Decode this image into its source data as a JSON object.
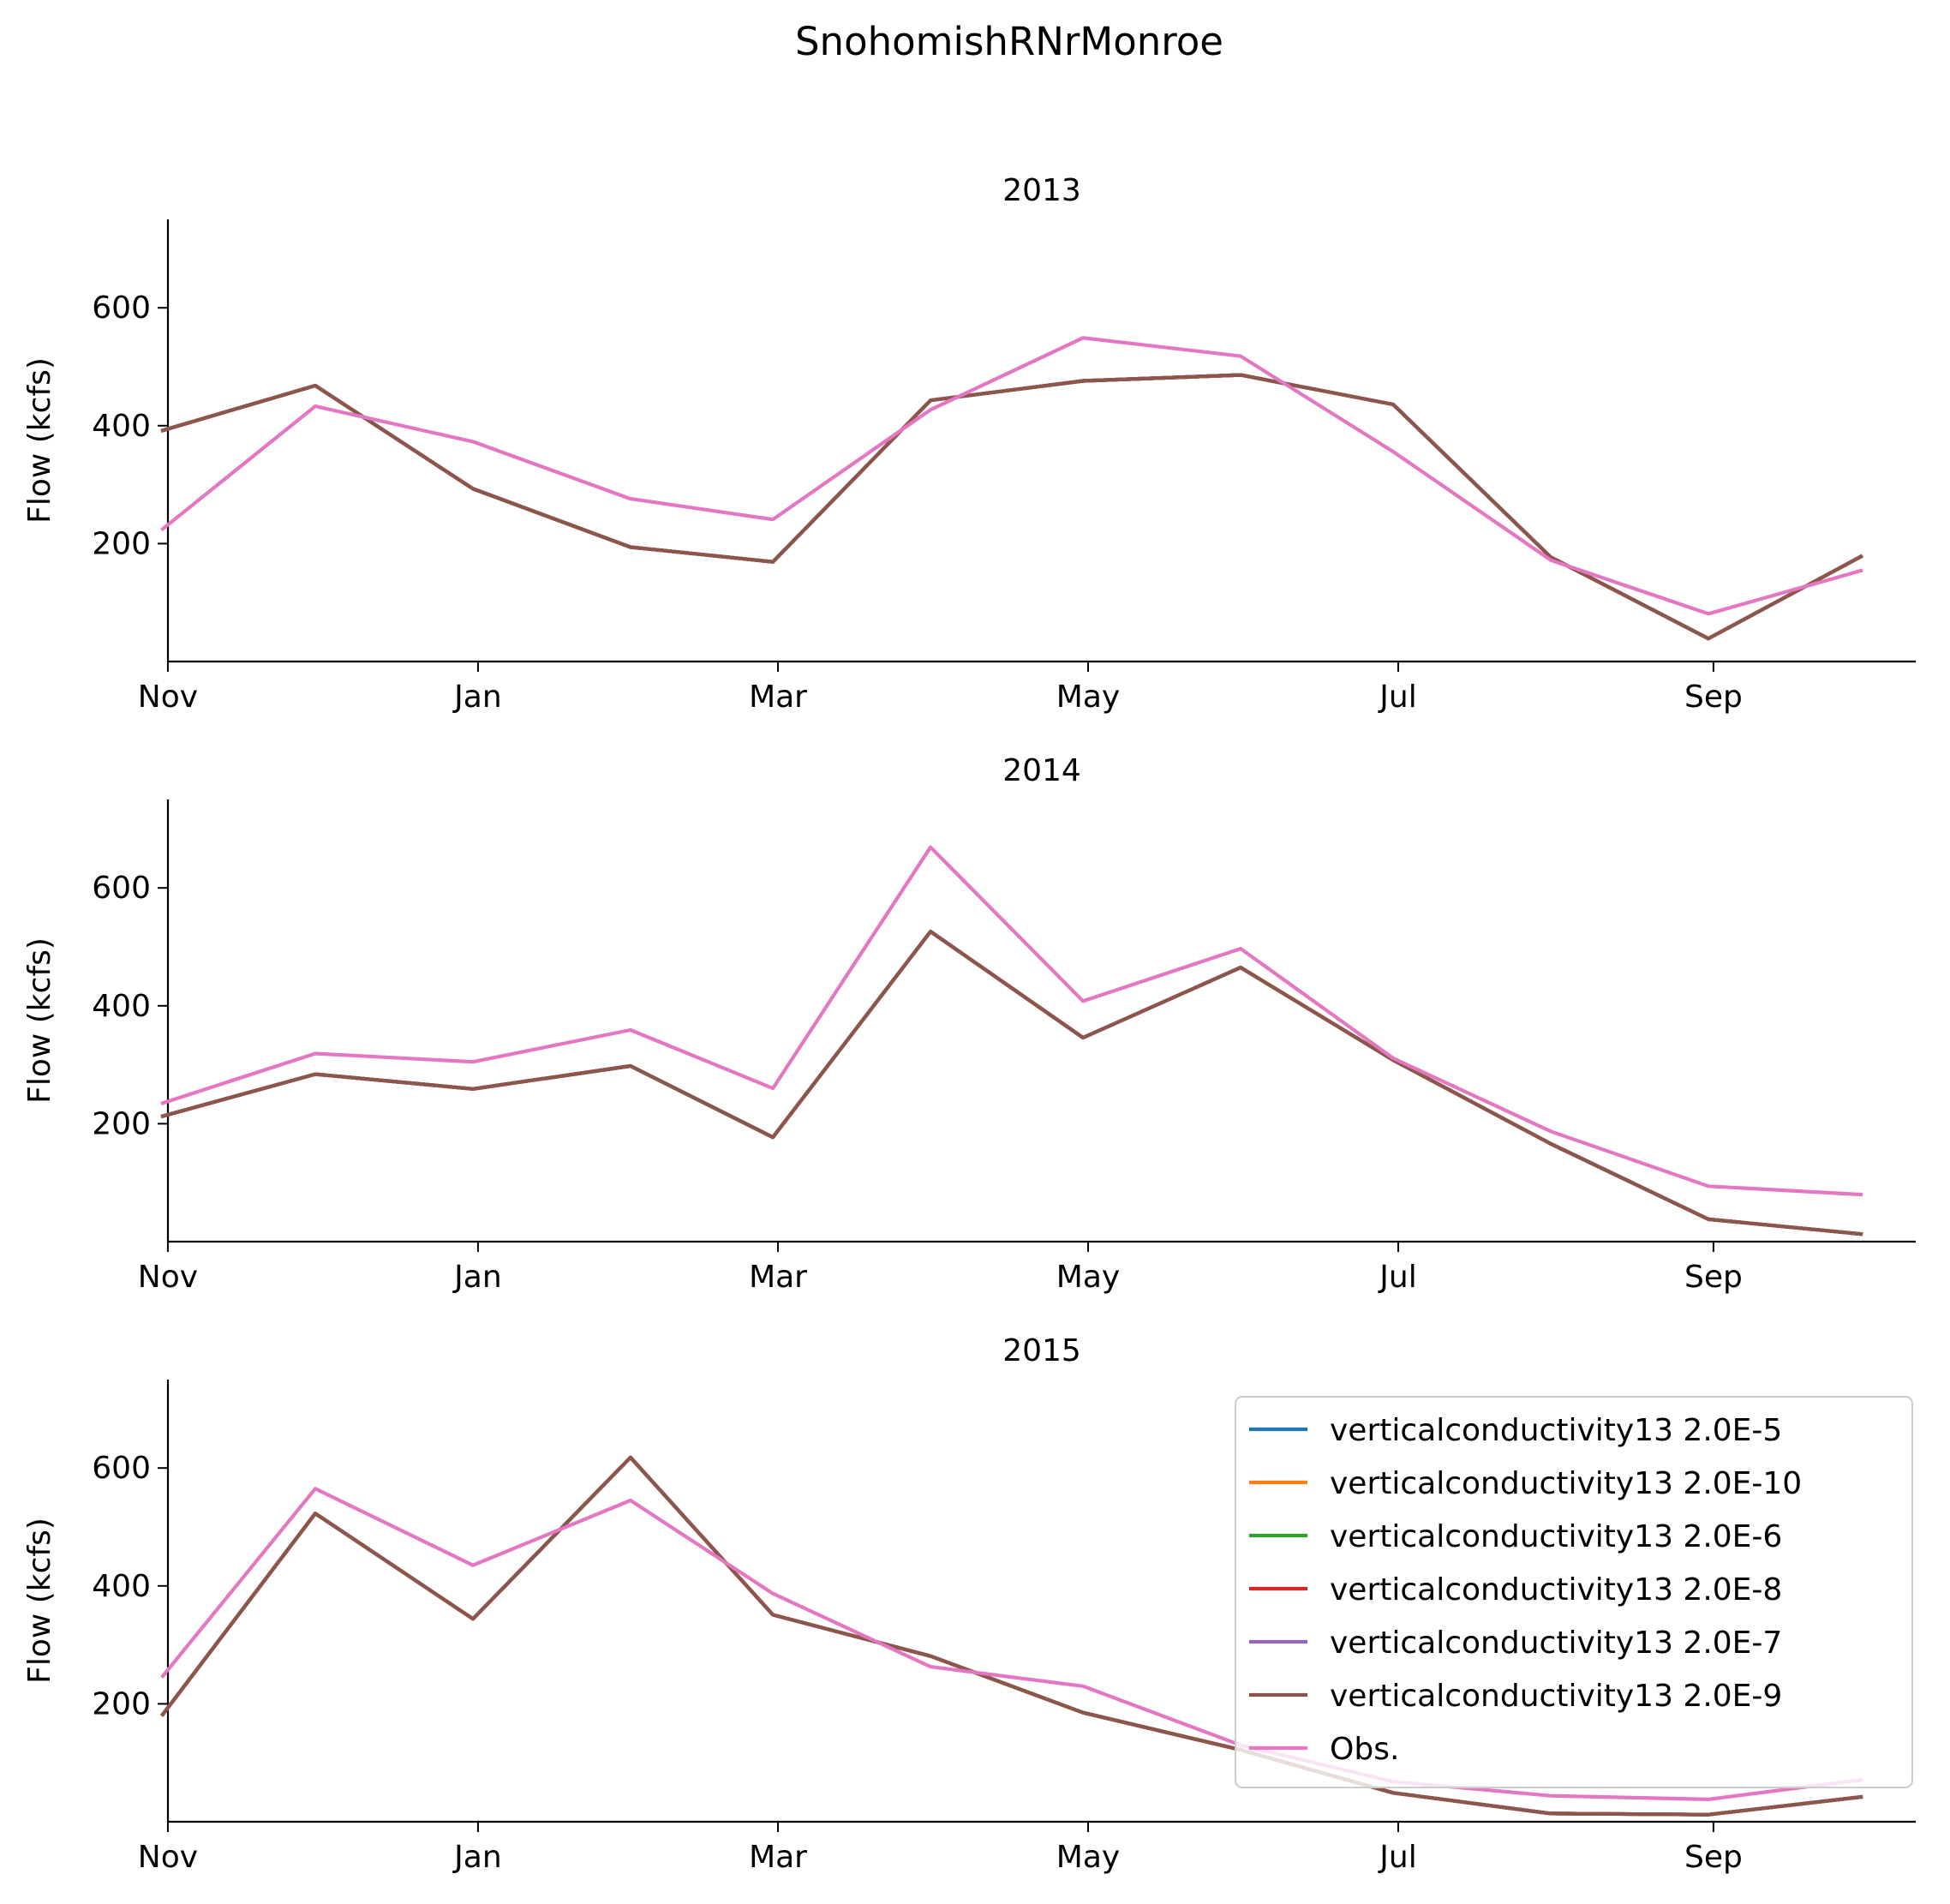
{
  "figure_title": "SnohomishRNrMonroe",
  "colors": {
    "verticalconductivity13 2.0E-5": "#1f77b4",
    "verticalconductivity13 2.0E-10": "#ff7f0e",
    "verticalconductivity13 2.0E-6": "#2ca02c",
    "verticalconductivity13 2.0E-8": "#d62728",
    "verticalconductivity13 2.0E-7": "#9467bd",
    "verticalconductivity13 2.0E-9": "#8c564b",
    "Obs.": "#e377c2"
  },
  "legend": {
    "entries": [
      "verticalconductivity13 2.0E-5",
      "verticalconductivity13 2.0E-10",
      "verticalconductivity13 2.0E-6",
      "verticalconductivity13 2.0E-8",
      "verticalconductivity13 2.0E-7",
      "verticalconductivity13 2.0E-9",
      "Obs."
    ],
    "placement": "upper-right of bottom panel"
  },
  "chart_data": [
    {
      "type": "line",
      "title": "2013",
      "ylabel": "Flow (kcfs)",
      "xlabel": "",
      "ylim": [
        0,
        750
      ],
      "yticks": [
        200,
        400,
        600
      ],
      "xtick_labels": [
        "Nov",
        "Jan",
        "Mar",
        "May",
        "Jul",
        "Sep"
      ],
      "x": [
        "2012-10-31",
        "2012-11-30",
        "2012-12-31",
        "2013-01-31",
        "2013-02-28",
        "2013-03-31",
        "2013-04-30",
        "2013-05-31",
        "2013-06-30",
        "2013-07-31",
        "2013-08-31",
        "2013-09-30"
      ],
      "series": [
        {
          "name": "verticalconductivity13 2.0E-5",
          "values": [
            392,
            468,
            293,
            194,
            169,
            443,
            476,
            486,
            436,
            177,
            39,
            178
          ]
        },
        {
          "name": "verticalconductivity13 2.0E-10",
          "values": [
            392,
            468,
            293,
            194,
            169,
            443,
            476,
            486,
            436,
            177,
            39,
            178
          ]
        },
        {
          "name": "verticalconductivity13 2.0E-6",
          "values": [
            392,
            468,
            293,
            194,
            169,
            443,
            476,
            486,
            436,
            177,
            39,
            178
          ]
        },
        {
          "name": "verticalconductivity13 2.0E-8",
          "values": [
            392,
            468,
            293,
            194,
            169,
            443,
            476,
            486,
            436,
            177,
            39,
            178
          ]
        },
        {
          "name": "verticalconductivity13 2.0E-7",
          "values": [
            392,
            468,
            293,
            194,
            169,
            443,
            476,
            486,
            436,
            177,
            39,
            178
          ]
        },
        {
          "name": "verticalconductivity13 2.0E-9",
          "values": [
            392,
            468,
            293,
            194,
            169,
            443,
            476,
            486,
            436,
            177,
            39,
            178
          ]
        },
        {
          "name": "Obs.",
          "values": [
            225,
            433,
            373,
            276,
            241,
            427,
            549,
            518,
            356,
            172,
            81,
            154
          ]
        }
      ]
    },
    {
      "type": "line",
      "title": "2014",
      "ylabel": "Flow (kcfs)",
      "xlabel": "",
      "ylim": [
        0,
        750
      ],
      "yticks": [
        200,
        400,
        600
      ],
      "xtick_labels": [
        "Nov",
        "Jan",
        "Mar",
        "May",
        "Jul",
        "Sep"
      ],
      "x": [
        "2013-10-31",
        "2013-11-30",
        "2013-12-31",
        "2014-01-31",
        "2014-02-28",
        "2014-03-31",
        "2014-04-30",
        "2014-05-31",
        "2014-06-30",
        "2014-07-31",
        "2014-08-31",
        "2014-09-30"
      ],
      "series": [
        {
          "name": "verticalconductivity13 2.0E-5",
          "values": [
            213,
            284,
            259,
            298,
            177,
            526,
            346,
            465,
            308,
            166,
            38,
            13
          ]
        },
        {
          "name": "verticalconductivity13 2.0E-10",
          "values": [
            213,
            284,
            259,
            298,
            177,
            526,
            346,
            465,
            308,
            166,
            38,
            13
          ]
        },
        {
          "name": "verticalconductivity13 2.0E-6",
          "values": [
            213,
            284,
            259,
            298,
            177,
            526,
            346,
            465,
            308,
            166,
            38,
            13
          ]
        },
        {
          "name": "verticalconductivity13 2.0E-8",
          "values": [
            213,
            284,
            259,
            298,
            177,
            526,
            346,
            465,
            308,
            166,
            38,
            13
          ]
        },
        {
          "name": "verticalconductivity13 2.0E-7",
          "values": [
            213,
            284,
            259,
            298,
            177,
            526,
            346,
            465,
            308,
            166,
            38,
            13
          ]
        },
        {
          "name": "verticalconductivity13 2.0E-9",
          "values": [
            213,
            284,
            259,
            298,
            177,
            526,
            346,
            465,
            308,
            166,
            38,
            13
          ]
        },
        {
          "name": "Obs.",
          "values": [
            235,
            319,
            305,
            359,
            260,
            669,
            408,
            497,
            311,
            187,
            94,
            80
          ]
        }
      ]
    },
    {
      "type": "line",
      "title": "2015",
      "ylabel": "Flow (kcfs)",
      "xlabel": "",
      "ylim": [
        0,
        750
      ],
      "yticks": [
        200,
        400,
        600
      ],
      "xtick_labels": [
        "Nov",
        "Jan",
        "Mar",
        "May",
        "Jul",
        "Sep"
      ],
      "x": [
        "2014-10-31",
        "2014-11-30",
        "2014-12-31",
        "2015-01-31",
        "2015-02-28",
        "2015-03-31",
        "2015-04-30",
        "2015-05-31",
        "2015-06-30",
        "2015-07-31",
        "2015-08-31",
        "2015-09-30"
      ],
      "series": [
        {
          "name": "verticalconductivity13 2.0E-5",
          "values": [
            182,
            523,
            344,
            618,
            351,
            281,
            185,
            122,
            49,
            14,
            12,
            42
          ]
        },
        {
          "name": "verticalconductivity13 2.0E-10",
          "values": [
            182,
            523,
            344,
            618,
            351,
            281,
            185,
            122,
            49,
            14,
            12,
            42
          ]
        },
        {
          "name": "verticalconductivity13 2.0E-6",
          "values": [
            182,
            523,
            344,
            618,
            351,
            281,
            185,
            122,
            49,
            14,
            12,
            42
          ]
        },
        {
          "name": "verticalconductivity13 2.0E-8",
          "values": [
            182,
            523,
            344,
            618,
            351,
            281,
            185,
            122,
            49,
            14,
            12,
            42
          ]
        },
        {
          "name": "verticalconductivity13 2.0E-7",
          "values": [
            182,
            523,
            344,
            618,
            351,
            281,
            185,
            122,
            49,
            14,
            12,
            42
          ]
        },
        {
          "name": "verticalconductivity13 2.0E-9",
          "values": [
            182,
            523,
            344,
            618,
            351,
            281,
            185,
            122,
            49,
            14,
            12,
            42
          ]
        },
        {
          "name": "Obs.",
          "values": [
            247,
            565,
            435,
            545,
            387,
            263,
            230,
            130,
            68,
            44,
            38,
            71
          ]
        }
      ]
    }
  ]
}
